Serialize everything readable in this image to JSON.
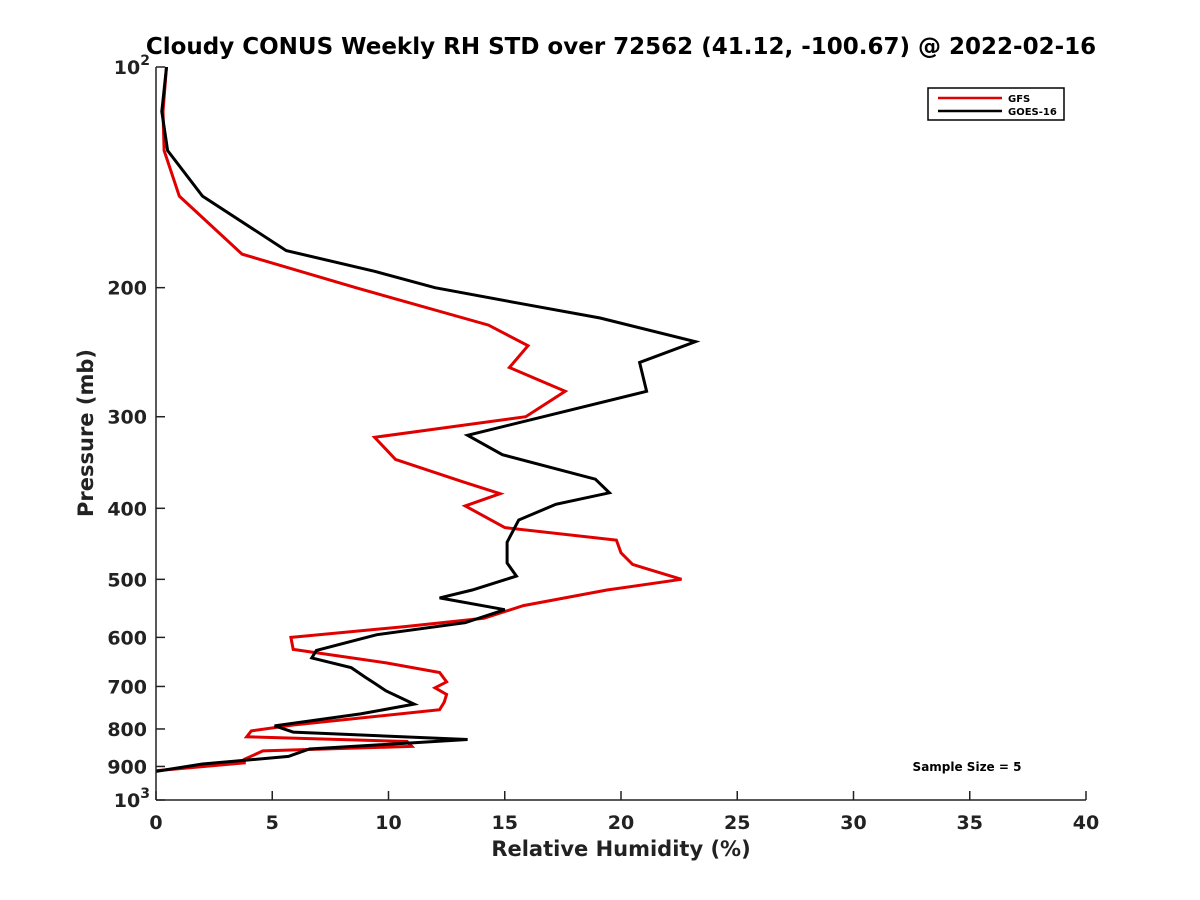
{
  "chart_data": {
    "type": "line",
    "title": "Cloudy CONUS Weekly RH STD over 72562 (41.12, -100.67) @ 2022-02-16",
    "xlabel": "Relative Humidity (%)",
    "ylabel": "Pressure (mb)",
    "xlim": [
      0,
      40
    ],
    "ylim": [
      100,
      1000
    ],
    "y_scale": "log",
    "y_reversed": true,
    "grid": false,
    "legend_position": "top-right",
    "x_ticks": [
      "0",
      "5",
      "10",
      "15",
      "20",
      "25",
      "30",
      "35",
      "40"
    ],
    "y_ticks": [
      {
        "value": 100,
        "base": "10",
        "exp": "2"
      },
      {
        "value": 200,
        "label": "200"
      },
      {
        "value": 300,
        "label": "300"
      },
      {
        "value": 400,
        "label": "400"
      },
      {
        "value": 500,
        "label": "500"
      },
      {
        "value": 600,
        "label": "600"
      },
      {
        "value": 700,
        "label": "700"
      },
      {
        "value": 800,
        "label": "800"
      },
      {
        "value": 900,
        "label": "900"
      },
      {
        "value": 1000,
        "base": "10",
        "exp": "3"
      }
    ],
    "annotation": "Sample Size = 5",
    "series": [
      {
        "name": "GFS",
        "color": "#e00000",
        "points": [
          [
            0.45,
            100
          ],
          [
            0.3,
            115
          ],
          [
            0.35,
            130
          ],
          [
            1.0,
            150
          ],
          [
            3.7,
            180
          ],
          [
            8.6,
            200
          ],
          [
            14.3,
            225
          ],
          [
            16.0,
            240
          ],
          [
            15.2,
            257
          ],
          [
            17.6,
            277
          ],
          [
            15.9,
            300
          ],
          [
            9.4,
            320
          ],
          [
            10.3,
            343
          ],
          [
            13.2,
            368
          ],
          [
            14.8,
            382
          ],
          [
            13.3,
            397
          ],
          [
            15.0,
            425
          ],
          [
            19.8,
            442
          ],
          [
            20.0,
            460
          ],
          [
            20.5,
            477
          ],
          [
            22.6,
            500
          ],
          [
            19.4,
            517
          ],
          [
            15.8,
            543
          ],
          [
            14.1,
            565
          ],
          [
            10.7,
            580
          ],
          [
            5.8,
            600
          ],
          [
            5.9,
            623
          ],
          [
            9.9,
            650
          ],
          [
            12.2,
            670
          ],
          [
            12.5,
            690
          ],
          [
            12.0,
            703
          ],
          [
            12.5,
            718
          ],
          [
            12.4,
            735
          ],
          [
            12.2,
            753
          ],
          [
            5.9,
            790
          ],
          [
            4.1,
            805
          ],
          [
            3.9,
            820
          ],
          [
            10.8,
            832
          ],
          [
            11.0,
            845
          ],
          [
            4.6,
            857
          ],
          [
            3.8,
            880
          ],
          [
            3.8,
            890
          ],
          [
            0.0,
            912
          ]
        ]
      },
      {
        "name": "GOES-16",
        "color": "#000000",
        "points": [
          [
            0.45,
            100
          ],
          [
            0.25,
            115
          ],
          [
            0.5,
            130
          ],
          [
            2.0,
            150
          ],
          [
            5.6,
            178
          ],
          [
            9.4,
            190
          ],
          [
            12.0,
            200
          ],
          [
            15.6,
            210
          ],
          [
            19.1,
            220
          ],
          [
            23.2,
            237
          ],
          [
            20.8,
            253
          ],
          [
            21.1,
            277
          ],
          [
            13.4,
            318
          ],
          [
            14.9,
            338
          ],
          [
            18.9,
            365
          ],
          [
            19.5,
            381
          ],
          [
            17.2,
            395
          ],
          [
            15.6,
            415
          ],
          [
            15.1,
            445
          ],
          [
            15.1,
            475
          ],
          [
            15.5,
            495
          ],
          [
            13.6,
            517
          ],
          [
            12.2,
            530
          ],
          [
            15.0,
            550
          ],
          [
            13.3,
            573
          ],
          [
            9.5,
            595
          ],
          [
            6.9,
            625
          ],
          [
            6.7,
            640
          ],
          [
            8.4,
            660
          ],
          [
            9.0,
            680
          ],
          [
            9.4,
            693
          ],
          [
            9.9,
            710
          ],
          [
            11.1,
            740
          ],
          [
            8.8,
            763
          ],
          [
            5.1,
            792
          ],
          [
            5.9,
            808
          ],
          [
            13.4,
            827
          ],
          [
            6.6,
            852
          ],
          [
            5.7,
            872
          ],
          [
            2.0,
            893
          ],
          [
            0.0,
            914
          ]
        ]
      }
    ]
  }
}
